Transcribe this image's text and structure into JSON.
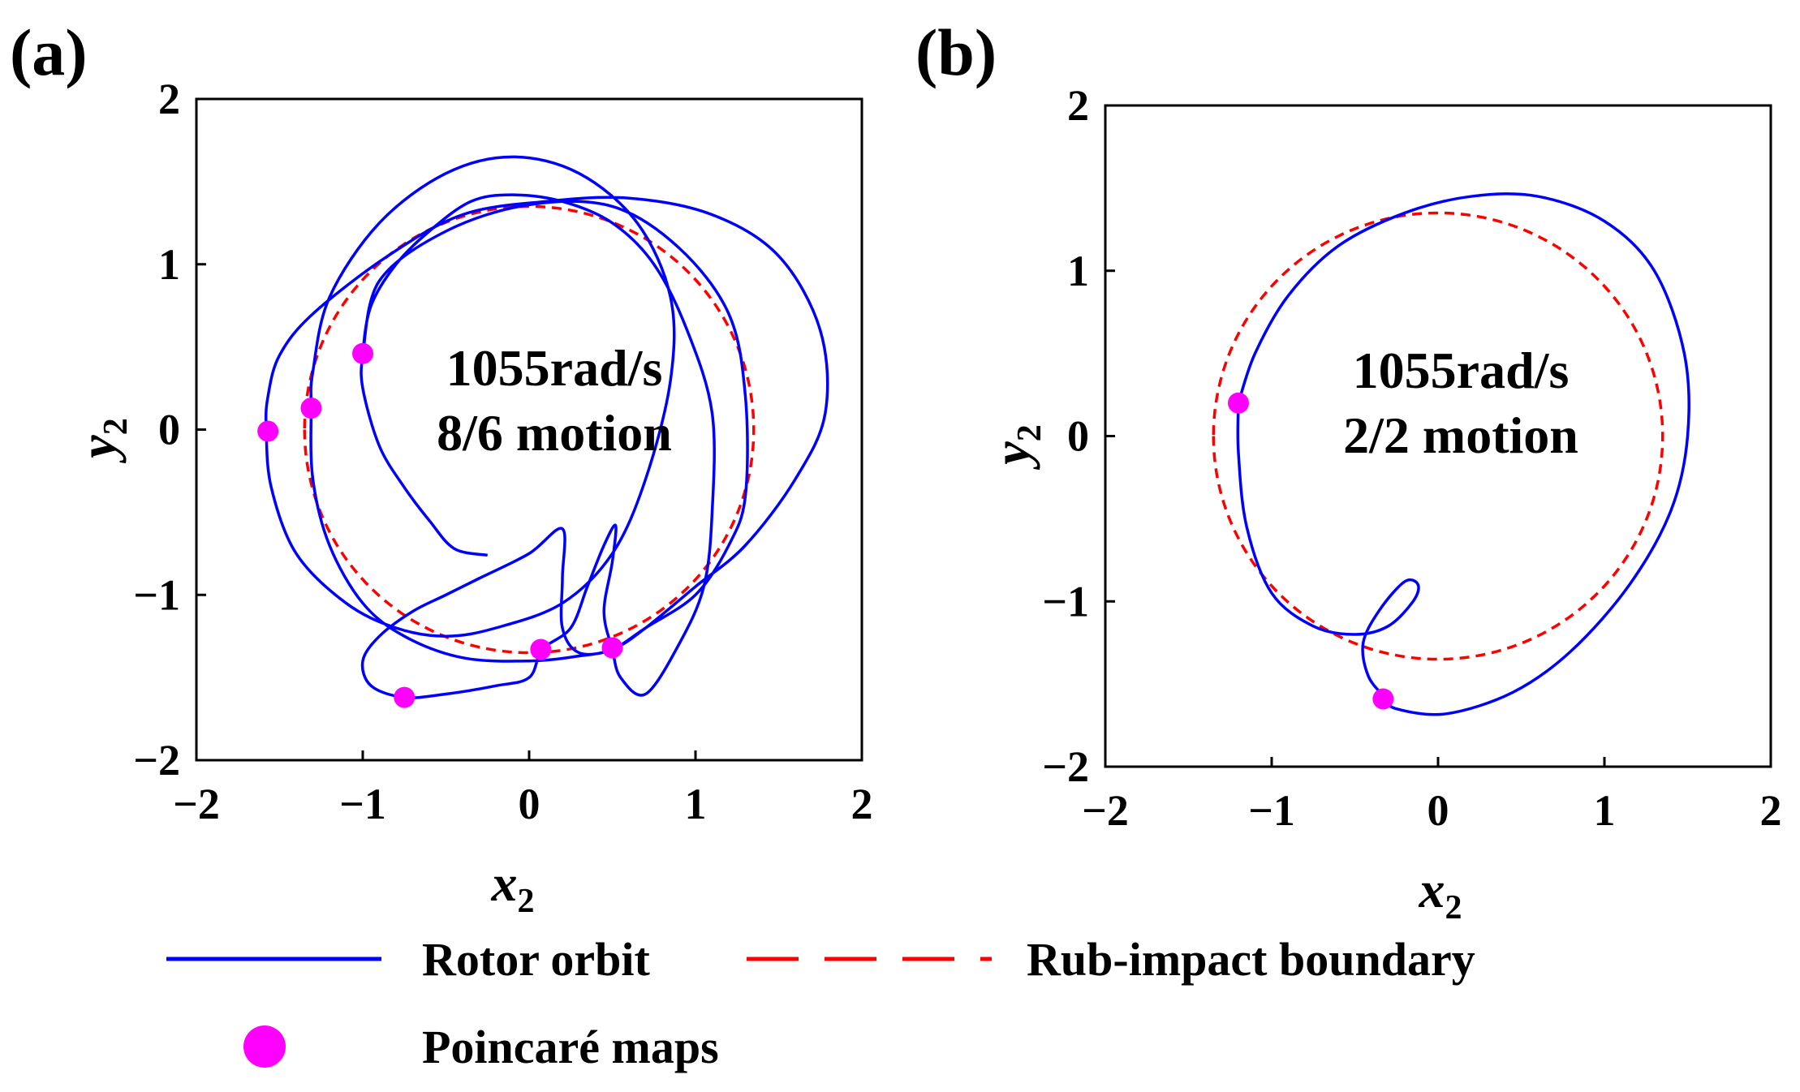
{
  "chart_data": [
    {
      "type": "scatter",
      "panel_label": "(a)",
      "annotation": [
        "1055rad/s",
        "8/6 motion"
      ],
      "xlabel": "x",
      "xlabel_sub": "2",
      "ylabel": "y",
      "ylabel_sub": "2",
      "xlim": [
        -2,
        2
      ],
      "ylim": [
        -2,
        2
      ],
      "xticks": [
        -2,
        -1,
        0,
        1,
        2
      ],
      "yticks": [
        -2,
        -1,
        0,
        1,
        2
      ],
      "tick_labels": [
        "−2",
        "−1",
        "0",
        "1",
        "2"
      ],
      "boundary_radius": 1.35,
      "series": [
        {
          "name": "Rotor orbit",
          "color": "#0000ff",
          "style": "solid",
          "points": [
            [
              -0.25,
              -0.76
            ],
            [
              -0.45,
              -0.72
            ],
            [
              -0.6,
              -0.55
            ],
            [
              -0.75,
              -0.35
            ],
            [
              -0.9,
              -0.1
            ],
            [
              -1.0,
              0.25
            ],
            [
              -1.0,
              0.46
            ],
            [
              -0.95,
              0.75
            ],
            [
              -0.8,
              1.0
            ],
            [
              -0.6,
              1.2
            ],
            [
              -0.35,
              1.38
            ],
            [
              -0.1,
              1.42
            ],
            [
              0.2,
              1.38
            ],
            [
              0.5,
              1.25
            ],
            [
              0.75,
              1.0
            ],
            [
              0.95,
              0.6
            ],
            [
              1.1,
              0.1
            ],
            [
              1.1,
              -0.5
            ],
            [
              1.05,
              -0.95
            ],
            [
              0.9,
              -1.3
            ],
            [
              0.7,
              -1.6
            ],
            [
              0.55,
              -1.5
            ],
            [
              0.5,
              -1.33
            ],
            [
              0.45,
              -1.1
            ],
            [
              0.5,
              -0.8
            ],
            [
              0.52,
              -0.58
            ],
            [
              0.45,
              -0.7
            ],
            [
              0.35,
              -0.95
            ],
            [
              0.25,
              -1.2
            ],
            [
              0.08,
              -1.33
            ],
            [
              0.0,
              -1.5
            ],
            [
              -0.2,
              -1.55
            ],
            [
              -0.5,
              -1.6
            ],
            [
              -0.75,
              -1.62
            ],
            [
              -0.95,
              -1.55
            ],
            [
              -1.0,
              -1.4
            ],
            [
              -0.9,
              -1.25
            ],
            [
              -0.7,
              -1.1
            ],
            [
              -0.5,
              -1.0
            ],
            [
              -0.3,
              -0.9
            ],
            [
              0.0,
              -0.75
            ],
            [
              0.2,
              -0.6
            ],
            [
              0.2,
              -0.9
            ],
            [
              0.2,
              -1.2
            ],
            [
              0.3,
              -1.35
            ],
            [
              0.5,
              -1.33
            ],
            [
              0.7,
              -1.2
            ],
            [
              1.0,
              -0.95
            ],
            [
              1.3,
              -0.7
            ],
            [
              1.6,
              -0.3
            ],
            [
              1.78,
              0.1
            ],
            [
              1.75,
              0.6
            ],
            [
              1.5,
              1.05
            ],
            [
              1.1,
              1.3
            ],
            [
              0.6,
              1.4
            ],
            [
              0.1,
              1.38
            ],
            [
              -0.4,
              1.3
            ],
            [
              -0.85,
              1.05
            ],
            [
              -1.3,
              0.7
            ],
            [
              -1.5,
              0.45
            ],
            [
              -1.57,
              0.2
            ],
            [
              -1.58,
              0.0
            ],
            [
              -1.55,
              -0.35
            ],
            [
              -1.4,
              -0.75
            ],
            [
              -1.1,
              -1.05
            ],
            [
              -0.8,
              -1.2
            ],
            [
              -0.5,
              -1.25
            ],
            [
              -0.2,
              -1.2
            ],
            [
              0.2,
              -1.05
            ],
            [
              0.5,
              -0.75
            ],
            [
              0.7,
              -0.3
            ],
            [
              0.85,
              0.3
            ],
            [
              0.85,
              0.8
            ],
            [
              0.65,
              1.25
            ],
            [
              0.3,
              1.55
            ],
            [
              -0.1,
              1.65
            ],
            [
              -0.5,
              1.55
            ],
            [
              -0.9,
              1.25
            ],
            [
              -1.2,
              0.8
            ],
            [
              -1.3,
              0.35
            ],
            [
              -1.31,
              0.13
            ],
            [
              -1.3,
              -0.3
            ],
            [
              -1.2,
              -0.7
            ],
            [
              -1.0,
              -1.05
            ],
            [
              -0.75,
              -1.25
            ],
            [
              -0.4,
              -1.38
            ],
            [
              0.0,
              -1.4
            ],
            [
              0.3,
              -1.37
            ],
            [
              0.5,
              -1.33
            ],
            [
              0.7,
              -1.2
            ],
            [
              1.0,
              -1.0
            ],
            [
              1.2,
              -0.7
            ],
            [
              1.3,
              -0.4
            ],
            [
              1.3,
              0.2
            ],
            [
              1.2,
              0.7
            ],
            [
              0.9,
              1.1
            ],
            [
              0.5,
              1.35
            ],
            [
              0.0,
              1.36
            ],
            [
              -0.5,
              1.2
            ],
            [
              -0.9,
              0.9
            ],
            [
              -1.0,
              0.46
            ]
          ]
        },
        {
          "name": "Rub-impact boundary",
          "color": "#ff0000",
          "style": "dashed"
        },
        {
          "name": "Poincaré maps",
          "color": "#ff00ff",
          "style": "marker",
          "points": [
            [
              -1.57,
              -0.01
            ],
            [
              -1.31,
              0.13
            ],
            [
              -1.0,
              0.46
            ],
            [
              -0.75,
              -1.62
            ],
            [
              0.07,
              -1.33
            ],
            [
              0.5,
              -1.32
            ]
          ]
        }
      ]
    },
    {
      "type": "scatter",
      "panel_label": "(b)",
      "annotation": [
        "1055rad/s",
        "2/2 motion"
      ],
      "xlabel": "x",
      "xlabel_sub": "2",
      "ylabel": "y",
      "ylabel_sub": "2",
      "xlim": [
        -2,
        2
      ],
      "ylim": [
        -2,
        2
      ],
      "xticks": [
        -2,
        -1,
        0,
        1,
        2
      ],
      "yticks": [
        -2,
        -1,
        0,
        1,
        2
      ],
      "tick_labels": [
        "−2",
        "−1",
        "0",
        "1",
        "2"
      ],
      "boundary_radius": 1.35,
      "series": [
        {
          "name": "Rotor orbit",
          "color": "#0000ff",
          "style": "solid",
          "points": [
            [
              -1.2,
              0.2
            ],
            [
              -1.1,
              0.5
            ],
            [
              -0.9,
              0.85
            ],
            [
              -0.6,
              1.15
            ],
            [
              -0.2,
              1.35
            ],
            [
              0.2,
              1.45
            ],
            [
              0.6,
              1.45
            ],
            [
              1.0,
              1.3
            ],
            [
              1.3,
              1.0
            ],
            [
              1.48,
              0.5
            ],
            [
              1.5,
              0.0
            ],
            [
              1.4,
              -0.45
            ],
            [
              1.15,
              -0.9
            ],
            [
              0.8,
              -1.3
            ],
            [
              0.45,
              -1.55
            ],
            [
              0.05,
              -1.68
            ],
            [
              -0.25,
              -1.65
            ],
            [
              -0.32,
              -1.58
            ],
            [
              -0.42,
              -1.45
            ],
            [
              -0.45,
              -1.25
            ],
            [
              -0.35,
              -1.05
            ],
            [
              -0.2,
              -0.88
            ],
            [
              -0.12,
              -0.9
            ],
            [
              -0.15,
              -1.0
            ],
            [
              -0.3,
              -1.15
            ],
            [
              -0.5,
              -1.2
            ],
            [
              -0.75,
              -1.15
            ],
            [
              -1.0,
              -0.95
            ],
            [
              -1.15,
              -0.55
            ],
            [
              -1.2,
              -0.1
            ],
            [
              -1.2,
              0.2
            ]
          ]
        },
        {
          "name": "Rub-impact boundary",
          "color": "#ff0000",
          "style": "dashed"
        },
        {
          "name": "Poincaré maps",
          "color": "#ff00ff",
          "style": "marker",
          "points": [
            [
              -1.2,
              0.2
            ],
            [
              -0.33,
              -1.59
            ]
          ]
        }
      ]
    }
  ],
  "legend": {
    "rotor_orbit": "Rotor orbit",
    "boundary": "Rub-impact boundary",
    "poincare": "Poincaré maps"
  }
}
